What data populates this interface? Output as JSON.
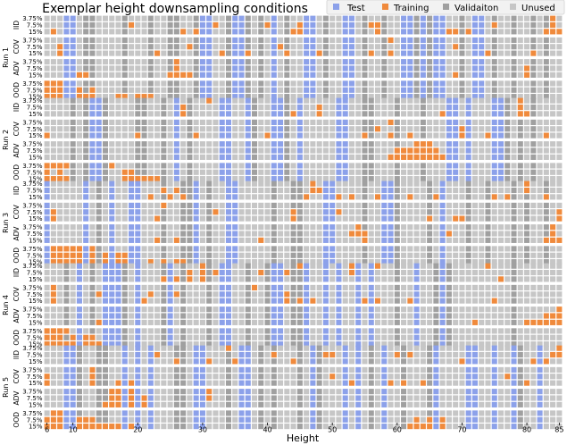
{
  "chart_data": {
    "type": "heatmap",
    "title": "Exemplar height downsampling conditions",
    "xlabel": "Height",
    "x_range": [
      6,
      85
    ],
    "x_ticks": [
      6,
      10,
      20,
      30,
      40,
      50,
      60,
      70,
      80,
      85
    ],
    "legend": {
      "position": "top-right",
      "entries": [
        {
          "key": "test",
          "label": "Test",
          "color": "#8ca1ea"
        },
        {
          "key": "training",
          "label": "Training",
          "color": "#f08a3c"
        },
        {
          "key": "validation",
          "label": "Validaiton",
          "color": "#a0a0a0"
        },
        {
          "key": "unused",
          "label": "Unused",
          "color": "#c6c6c6"
        }
      ]
    },
    "conditions": [
      "IID",
      "COV",
      "ADV",
      "OOD"
    ],
    "percentages": [
      "3.75%",
      "7.5%",
      "15%"
    ],
    "runs": [
      {
        "label": "Run 1",
        "test": [
          9,
          10,
          30,
          31,
          35,
          36,
          41,
          46,
          47,
          52,
          53,
          61,
          62,
          64,
          66,
          67,
          72,
          73
        ],
        "validation": [
          12,
          13,
          18,
          22,
          25,
          26,
          29,
          34,
          37,
          39,
          43,
          49,
          55,
          58,
          63,
          65,
          70,
          75,
          78,
          81,
          83
        ],
        "training": {
          "IID": {
            "3.75%": [
              84
            ],
            "7.5%": [
              19,
              32,
              40,
              45,
              56,
              57,
              75,
              84
            ],
            "15%": [
              7,
              27,
              29,
              44,
              45,
              46,
              57,
              61,
              68,
              69,
              71,
              83,
              84,
              85
            ]
          },
          "COV": {
            "3.75%": [
              59
            ],
            "7.5%": [
              8,
              28,
              42,
              69
            ],
            "15%": [
              8,
              23,
              33,
              37,
              43,
              48,
              56,
              59,
              67,
              73,
              74,
              81
            ]
          },
          "ADV": {
            "3.75%": [
              26
            ],
            "7.5%": [
              26,
              66,
              80
            ],
            "15%": [
              11,
              12,
              25,
              26,
              27,
              28,
              66,
              69,
              80
            ]
          },
          "OOD": {
            "3.75%": [
              6,
              7,
              8,
              9
            ],
            "7.5%": [
              6,
              7,
              8,
              9,
              11,
              13
            ],
            "15%": [
              6,
              7,
              8,
              9,
              10,
              11,
              12,
              13,
              17,
              18,
              20,
              21,
              22
            ]
          }
        }
      },
      {
        "label": "Run 2",
        "test": [
          13,
          14,
          26,
          33,
          34,
          37,
          41,
          42,
          45,
          51,
          52,
          68,
          69,
          71,
          75,
          76
        ],
        "validation": [
          10,
          12,
          15,
          20,
          21,
          24,
          28,
          38,
          43,
          55,
          56,
          60,
          64,
          77,
          79,
          81
        ],
        "training": {
          "IID": {
            "3.75%": [
              31,
              79
            ],
            "7.5%": [
              27,
              41,
              42,
              48,
              79
            ],
            "15%": [
              27,
              41,
              44,
              48,
              67,
              79,
              80
            ]
          },
          "COV": {
            "3.75%": [
              59
            ],
            "7.5%": [
              57,
              70
            ],
            "15%": [
              6,
              20,
              29,
              40,
              52,
              55,
              59,
              62,
              70,
              74,
              75,
              83
            ]
          },
          "ADV": {
            "3.75%": [
              63,
              64,
              65
            ],
            "7.5%": [
              60,
              61,
              62,
              63,
              64,
              65,
              66
            ],
            "15%": [
              59,
              60,
              61,
              62,
              63,
              64,
              65,
              66,
              67
            ]
          },
          "OOD": {
            "3.75%": [
              6,
              7,
              8,
              9,
              16
            ],
            "7.5%": [
              6,
              8,
              18,
              19
            ],
            "15%": [
              6,
              7,
              8,
              9,
              18,
              19,
              20,
              21,
              22,
              23
            ]
          }
        }
      },
      {
        "label": "Run 3",
        "test": [
          6,
          12,
          16,
          19,
          20,
          29,
          34,
          35,
          49,
          50,
          58,
          59,
          67
        ],
        "validation": [
          14,
          24,
          27,
          28,
          31,
          41,
          44,
          45,
          55,
          60,
          65,
          71,
          74,
          78,
          80,
          83
        ],
        "training": {
          "IID": {
            "3.75%": [
              47,
              80
            ],
            "7.5%": [
              24,
              26,
              47,
              48,
              50,
              80
            ],
            "15%": [
              20,
              22,
              25,
              27,
              46,
              51,
              53,
              57,
              62,
              66,
              75,
              77,
              83
            ]
          },
          "COV": {
            "3.75%": [
              24
            ],
            "7.5%": [
              7,
              32,
              44,
              51,
              85
            ],
            "15%": [
              7,
              23,
              44,
              49,
              65,
              69,
              70,
              85
            ]
          },
          "ADV": {
            "3.75%": [
              54,
              84
            ],
            "7.5%": [
              53,
              54,
              55,
              68,
              84
            ],
            "15%": [
              23,
              26,
              39,
              55,
              59,
              83,
              84,
              85
            ]
          },
          "OOD": {
            "3.75%": [
              7,
              8,
              9,
              10,
              11,
              12,
              13
            ],
            "7.5%": [
              7,
              8,
              9,
              10,
              11,
              12,
              13,
              15,
              16,
              17,
              18
            ],
            "15%": [
              6,
              7,
              8,
              9,
              10,
              11,
              12,
              13,
              15,
              16,
              17,
              18,
              19,
              22,
              24,
              26,
              27
            ]
          }
        }
      },
      {
        "label": "Run 4",
        "test": [
          11,
          15,
          16,
          17,
          20,
          25,
          33,
          34,
          41,
          42,
          46,
          49,
          51,
          54,
          56,
          63,
          67
        ],
        "validation": [
          9,
          13,
          18,
          24,
          27,
          31,
          37,
          40,
          44,
          45,
          60,
          66,
          68,
          78
        ],
        "training": {
          "IID": {
            "3.75%": [
              30,
              45,
              53,
              57,
              74
            ],
            "7.5%": [
              28,
              30,
              32,
              39,
              43,
              53
            ],
            "15%": [
              24,
              26,
              28,
              30,
              46,
              76
            ]
          },
          "COV": {
            "3.75%": [
              7,
              38
            ],
            "7.5%": [
              7,
              14,
              22,
              26,
              43
            ],
            "15%": [
              7,
              11,
              21,
              43,
              45,
              47,
              55,
              57,
              62,
              75
            ]
          },
          "ADV": {
            "3.75%": [
              85
            ],
            "7.5%": [
              83,
              84,
              85
            ],
            "15%": [
              14,
              15,
              72,
              80,
              81,
              82,
              83,
              84,
              85
            ]
          },
          "OOD": {
            "3.75%": [
              6,
              7,
              8,
              9
            ],
            "7.5%": [
              6,
              7,
              8,
              10,
              11,
              12,
              13
            ],
            "15%": [
              6,
              7,
              8,
              9,
              10,
              11,
              12,
              13,
              14,
              15,
              16
            ]
          }
        }
      },
      {
        "label": "Run 5",
        "test": [
          9,
          10,
          18,
          20,
          22,
          29,
          30,
          36,
          37,
          47,
          52,
          54,
          58,
          66,
          71,
          72,
          75,
          78,
          82
        ],
        "validation": [
          11,
          14,
          15,
          26,
          27,
          34,
          39,
          41,
          45,
          48,
          56,
          61,
          65,
          79
        ],
        "training": {
          "IID": {
            "3.75%": [
              34,
              85
            ],
            "7.5%": [
              22,
              23,
              41,
              49,
              50,
              60,
              62,
              84,
              85
            ],
            "15%": [
              26,
              31,
              35,
              44,
              70,
              81,
              83
            ]
          },
          "COV": {
            "3.75%": [
              13
            ],
            "7.5%": [
              6,
              13,
              50,
              77
            ],
            "15%": [
              6,
              13,
              17,
              19,
              53,
              59,
              61,
              64,
              78,
              80
            ]
          },
          "ADV": {
            "3.75%": [
              16,
              17,
              18,
              19,
              20,
              31
            ],
            "7.5%": [
              16,
              17,
              18,
              19,
              20,
              21,
              31
            ],
            "15%": [
              15,
              16,
              17,
              18,
              19,
              20,
              21
            ]
          },
          "OOD": {
            "3.75%": [
              7,
              8
            ],
            "7.5%": [
              6,
              7,
              8,
              10,
              11,
              12,
              13,
              36,
              58,
              63,
              65,
              67
            ],
            "15%": [
              6,
              7,
              8,
              9,
              10,
              11,
              12,
              13,
              14,
              15,
              16,
              17,
              18,
              19,
              20,
              62,
              63,
              64,
              65,
              66,
              67
            ]
          }
        }
      }
    ]
  }
}
